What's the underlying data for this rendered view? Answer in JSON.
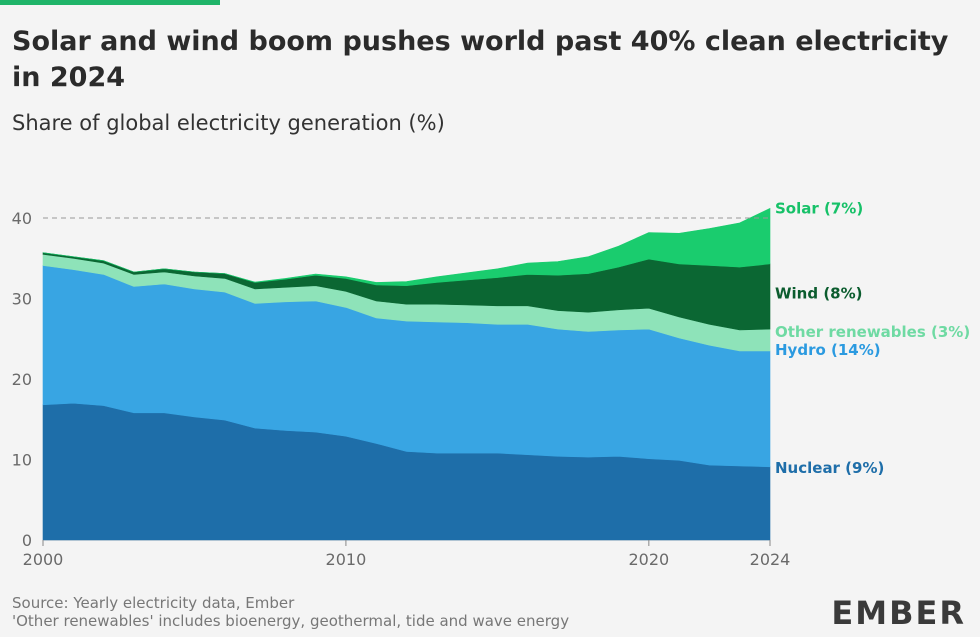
{
  "colors": {
    "accent": "#1fb469",
    "nuclear": "#1e6ea9",
    "hydro": "#38a5e3",
    "other": "#8ee3b9",
    "wind": "#0b6733",
    "solar": "#1acc6e",
    "nuclear_text": "#1e6ea9",
    "hydro_text": "#2b9ae0",
    "other_text": "#6fdaa3",
    "wind_text": "#0b5c2e",
    "solar_text": "#16c168"
  },
  "header": {
    "title": "Solar and wind boom pushes world past 40% clean electricity in 2024",
    "subtitle": "Share of global electricity generation (%)"
  },
  "chart_data": {
    "type": "area",
    "stacked": true,
    "title": "Solar and wind boom pushes world past 40% clean electricity in 2024",
    "ylabel": "Share of global electricity generation (%)",
    "ylim": [
      0,
      41
    ],
    "xlim": [
      2000,
      2024
    ],
    "x_ticks": [
      "2000",
      "2010",
      "2020",
      "2024"
    ],
    "y_ticks": [
      "0",
      "10",
      "20",
      "30",
      "40"
    ],
    "reference_line": 40,
    "x": [
      2000,
      2001,
      2002,
      2003,
      2004,
      2005,
      2006,
      2007,
      2008,
      2009,
      2010,
      2011,
      2012,
      2013,
      2014,
      2015,
      2016,
      2017,
      2018,
      2019,
      2020,
      2021,
      2022,
      2023,
      2024
    ],
    "series": [
      {
        "name": "Nuclear",
        "label": "Nuclear (9%)",
        "values": [
          16.8,
          17.0,
          16.7,
          15.8,
          15.8,
          15.3,
          14.9,
          13.9,
          13.6,
          13.4,
          12.9,
          12.0,
          11.0,
          10.8,
          10.8,
          10.8,
          10.6,
          10.4,
          10.3,
          10.4,
          10.1,
          9.9,
          9.3,
          9.2,
          9.1
        ]
      },
      {
        "name": "Hydro",
        "label": "Hydro (14%)",
        "values": [
          17.3,
          16.6,
          16.3,
          15.7,
          16.0,
          15.9,
          15.9,
          15.5,
          16.0,
          16.3,
          16.0,
          15.6,
          16.2,
          16.3,
          16.2,
          16.0,
          16.2,
          15.8,
          15.6,
          15.7,
          16.1,
          15.2,
          14.9,
          14.3,
          14.4
        ]
      },
      {
        "name": "Other renewables",
        "label": "Other renewables (3%)",
        "values": [
          1.4,
          1.4,
          1.4,
          1.5,
          1.5,
          1.6,
          1.7,
          1.8,
          1.8,
          1.9,
          2.0,
          2.1,
          2.1,
          2.2,
          2.2,
          2.3,
          2.3,
          2.3,
          2.4,
          2.5,
          2.6,
          2.6,
          2.6,
          2.6,
          2.7
        ]
      },
      {
        "name": "Wind",
        "label": "Wind (8%)",
        "values": [
          0.2,
          0.2,
          0.3,
          0.3,
          0.4,
          0.5,
          0.6,
          0.8,
          1.0,
          1.3,
          1.6,
          2.0,
          2.3,
          2.7,
          3.1,
          3.5,
          3.9,
          4.4,
          4.8,
          5.3,
          6.1,
          6.6,
          7.3,
          7.8,
          8.1
        ]
      },
      {
        "name": "Solar",
        "label": "Solar (7%)",
        "values": [
          0.0,
          0.0,
          0.0,
          0.0,
          0.0,
          0.0,
          0.0,
          0.05,
          0.1,
          0.15,
          0.2,
          0.3,
          0.5,
          0.7,
          0.9,
          1.1,
          1.4,
          1.7,
          2.1,
          2.6,
          3.3,
          3.8,
          4.6,
          5.5,
          6.9
        ]
      }
    ],
    "label_order_top_to_bottom": [
      "Solar",
      "Wind",
      "Other renewables",
      "Hydro",
      "Nuclear"
    ]
  },
  "footer": {
    "source": "Source: Yearly electricity data, Ember",
    "note": "'Other renewables' includes bioenergy, geothermal, tide and wave energy",
    "logo": "EMBER"
  }
}
